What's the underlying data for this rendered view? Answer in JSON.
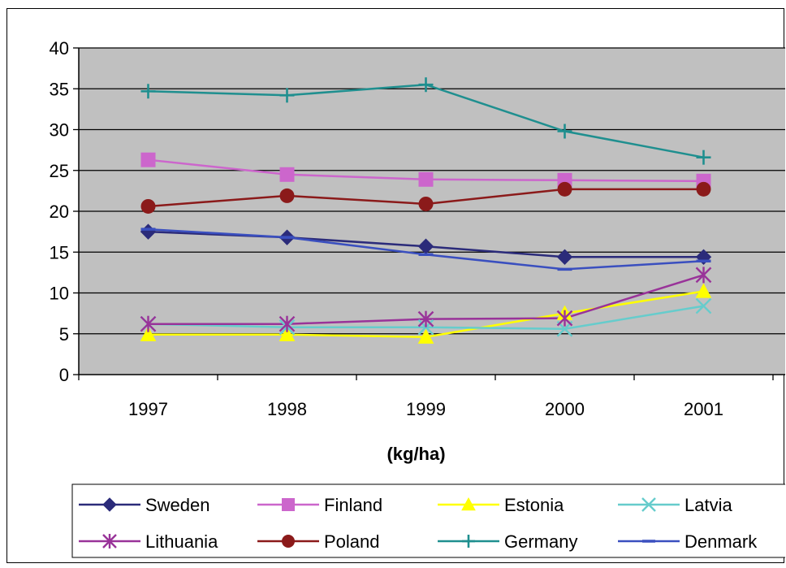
{
  "chart_data": {
    "type": "line",
    "title": "",
    "xlabel": "(kg/ha)",
    "ylabel": "",
    "ylim": [
      0,
      40
    ],
    "yticks": [
      0,
      5,
      10,
      15,
      20,
      25,
      30,
      35,
      40
    ],
    "grid": true,
    "legend_position": "bottom",
    "plot_background": "#c0c0c0",
    "categories": [
      "1997",
      "1998",
      "1999",
      "2000",
      "2001"
    ],
    "series": [
      {
        "name": "Sweden",
        "color": "#2b2b7a",
        "marker": "diamond",
        "values": [
          17.5,
          16.8,
          15.7,
          14.4,
          14.4
        ]
      },
      {
        "name": "Finland",
        "color": "#cc66cc",
        "marker": "square",
        "values": [
          26.3,
          24.5,
          23.9,
          23.8,
          23.7
        ]
      },
      {
        "name": "Estonia",
        "color": "#ffff00",
        "marker": "triangle",
        "values": [
          4.9,
          4.9,
          4.6,
          7.5,
          10.2
        ]
      },
      {
        "name": "Latvia",
        "color": "#66cccc",
        "marker": "x",
        "values": [
          6.2,
          5.8,
          5.8,
          5.6,
          8.4
        ]
      },
      {
        "name": "Lithuania",
        "color": "#993399",
        "marker": "star",
        "values": [
          6.2,
          6.2,
          6.8,
          6.9,
          12.2
        ]
      },
      {
        "name": "Poland",
        "color": "#8b1a1a",
        "marker": "circle",
        "values": [
          20.6,
          21.9,
          20.9,
          22.7,
          22.7
        ]
      },
      {
        "name": "Germany",
        "color": "#1f8f8f",
        "marker": "plus",
        "values": [
          34.7,
          34.2,
          35.5,
          29.8,
          26.6
        ]
      },
      {
        "name": "Denmark",
        "color": "#3a4fbf",
        "marker": "dash",
        "values": [
          17.8,
          16.8,
          14.7,
          12.9,
          13.9
        ]
      }
    ]
  }
}
